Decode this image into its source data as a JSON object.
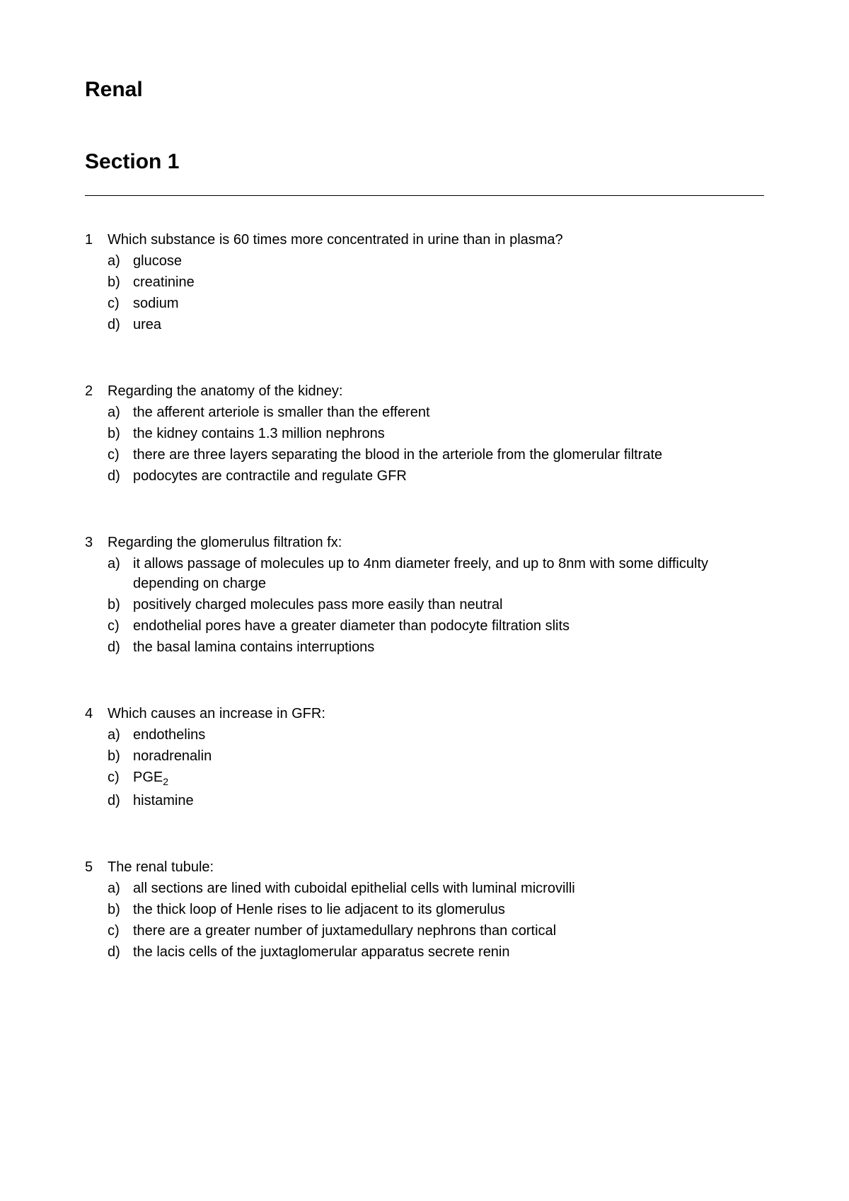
{
  "page": {
    "title": "Renal",
    "section_title": "Section 1",
    "title_fontsize": 30,
    "section_fontsize": 30,
    "body_fontsize": 20,
    "text_color": "#000000",
    "background_color": "#ffffff",
    "divider_color": "#000000"
  },
  "questions": [
    {
      "number": "1",
      "text": "Which substance is 60 times more concentrated in urine than in plasma?",
      "options": [
        {
          "letter": "a)",
          "text": "glucose"
        },
        {
          "letter": "b)",
          "text": "creatinine"
        },
        {
          "letter": "c)",
          "text": "sodium"
        },
        {
          "letter": "d)",
          "text": "urea"
        }
      ]
    },
    {
      "number": "2",
      "text": "Regarding the anatomy of the kidney:",
      "options": [
        {
          "letter": "a)",
          "text": "the afferent arteriole is smaller than the efferent"
        },
        {
          "letter": "b)",
          "text": "the kidney contains 1.3 million nephrons"
        },
        {
          "letter": "c)",
          "text": "there are three layers separating the blood in the arteriole from the glomerular filtrate"
        },
        {
          "letter": "d)",
          "text": "podocytes are contractile and regulate GFR"
        }
      ]
    },
    {
      "number": "3",
      "text": "Regarding the glomerulus filtration fx:",
      "options": [
        {
          "letter": "a)",
          "text": "it allows passage of molecules up to 4nm diameter freely, and up to 8nm with some difficulty depending on charge"
        },
        {
          "letter": "b)",
          "text": "positively charged molecules pass more easily than neutral"
        },
        {
          "letter": "c)",
          "text": "endothelial pores have a greater diameter than podocyte filtration slits"
        },
        {
          "letter": "d)",
          "text": "the basal lamina contains interruptions"
        }
      ]
    },
    {
      "number": "4",
      "text": "Which causes an increase in GFR:",
      "options": [
        {
          "letter": "a)",
          "text": "endothelins"
        },
        {
          "letter": "b)",
          "text": "noradrenalin"
        },
        {
          "letter": "c)",
          "text": "PGE",
          "subscript": "2"
        },
        {
          "letter": "d)",
          "text": "histamine"
        }
      ]
    },
    {
      "number": "5",
      "text": "The renal tubule:",
      "options": [
        {
          "letter": "a)",
          "text": "all sections are lined with cuboidal epithelial cells with luminal microvilli"
        },
        {
          "letter": "b)",
          "text": "the thick loop of Henle rises to lie adjacent to its glomerulus"
        },
        {
          "letter": "c)",
          "text": "there are a greater number of juxtamedullary nephrons than cortical"
        },
        {
          "letter": "d)",
          "text": "the lacis cells of the juxtaglomerular apparatus secrete renin"
        }
      ]
    }
  ]
}
